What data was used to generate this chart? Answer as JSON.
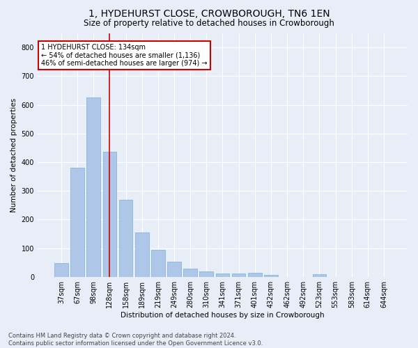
{
  "title": "1, HYDEHURST CLOSE, CROWBOROUGH, TN6 1EN",
  "subtitle": "Size of property relative to detached houses in Crowborough",
  "xlabel": "Distribution of detached houses by size in Crowborough",
  "ylabel": "Number of detached properties",
  "categories": [
    "37sqm",
    "67sqm",
    "98sqm",
    "128sqm",
    "158sqm",
    "189sqm",
    "219sqm",
    "249sqm",
    "280sqm",
    "310sqm",
    "341sqm",
    "371sqm",
    "401sqm",
    "432sqm",
    "462sqm",
    "492sqm",
    "523sqm",
    "553sqm",
    "583sqm",
    "614sqm",
    "644sqm"
  ],
  "values": [
    47,
    381,
    625,
    437,
    268,
    154,
    95,
    53,
    29,
    18,
    12,
    12,
    15,
    7,
    0,
    0,
    8,
    0,
    0,
    0,
    0
  ],
  "bar_color": "#aec6e8",
  "bar_edge_color": "#7aafd4",
  "background_color": "#e8eef8",
  "grid_color": "#ffffff",
  "vline_x": 3.0,
  "vline_color": "#cc0000",
  "annotation_text": "1 HYDEHURST CLOSE: 134sqm\n← 54% of detached houses are smaller (1,136)\n46% of semi-detached houses are larger (974) →",
  "annotation_box_color": "#ffffff",
  "annotation_box_edge_color": "#cc0000",
  "footer_text": "Contains HM Land Registry data © Crown copyright and database right 2024.\nContains public sector information licensed under the Open Government Licence v3.0.",
  "ylim": [
    0,
    850
  ],
  "yticks": [
    0,
    100,
    200,
    300,
    400,
    500,
    600,
    700,
    800
  ],
  "title_fontsize": 10,
  "subtitle_fontsize": 8.5,
  "axis_label_fontsize": 7.5,
  "tick_fontsize": 7,
  "annotation_fontsize": 7,
  "footer_fontsize": 6
}
